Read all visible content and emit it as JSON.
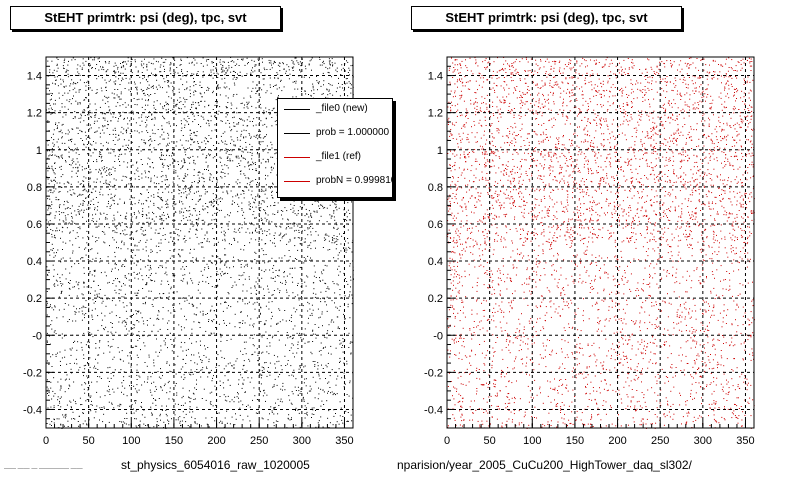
{
  "chart_data": [
    {
      "type": "scatter",
      "title": "StEHT primtrk: psi (deg), tpc, svt",
      "xlabel": "st_physics_6054016_raw_1020005",
      "xlim": [
        0,
        360
      ],
      "ylim": [
        -0.5,
        1.5
      ],
      "x_ticks": [
        "0",
        "50",
        "100",
        "150",
        "200",
        "250",
        "300",
        "350"
      ],
      "y_ticks": [
        "-0.4",
        "-0.2",
        "-0",
        "0.2",
        "0.4",
        "0.6",
        "0.8",
        "1",
        "1.2",
        "1.4"
      ],
      "grid": true,
      "point_color": "#000000",
      "density_note": "uniform in x; denser for y above 0.5",
      "legend": {
        "placement": "top-right",
        "entries": [
          {
            "label": "_file0 (new)",
            "color": "#000000"
          },
          {
            "label": "prob = 1.000000",
            "color": "#000000"
          },
          {
            "label": "_file1 (ref)",
            "color": "#cc0000"
          },
          {
            "label": "probN = 0.999810",
            "color": "#cc0000"
          }
        ]
      }
    },
    {
      "type": "scatter",
      "title": "StEHT primtrk: psi (deg), tpc, svt",
      "xlabel": "nparision/year_2005_CuCu200_HighTower_daq_sl302/",
      "xlim": [
        0,
        360
      ],
      "ylim": [
        -0.5,
        1.5
      ],
      "x_ticks": [
        "0",
        "50",
        "100",
        "150",
        "200",
        "250",
        "300",
        "350"
      ],
      "y_ticks": [
        "-0.4",
        "-0.2",
        "-0",
        "0.2",
        "0.4",
        "0.6",
        "0.8",
        "1",
        "1.2",
        "1.4"
      ],
      "grid": true,
      "point_color": "#cc0000",
      "density_note": "uniform in x; denser for y above 0.5"
    }
  ],
  "footer_tiny": "—— —— — ————— ——"
}
